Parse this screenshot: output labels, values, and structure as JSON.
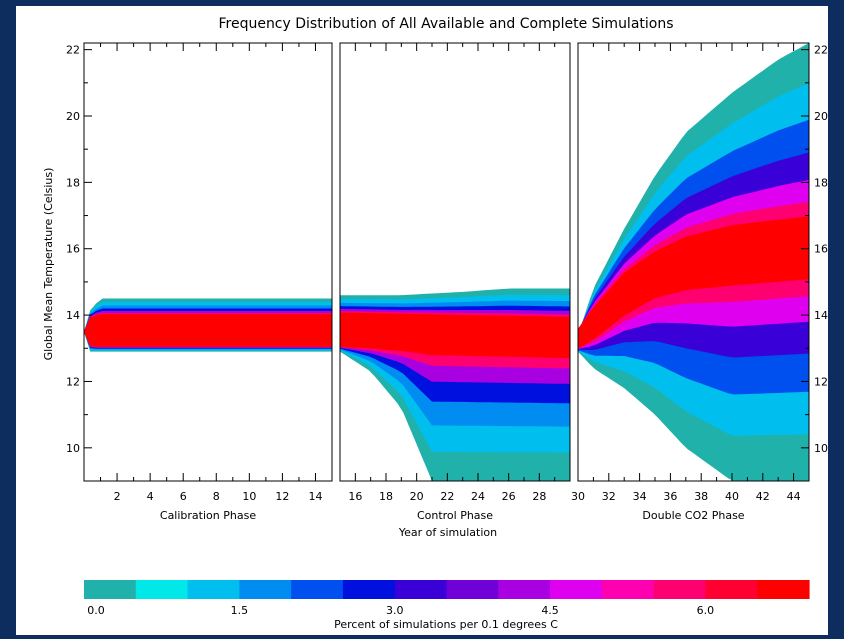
{
  "chart_data": {
    "type": "heatmap",
    "title": "Frequency Distribution of All Available and Complete Simulations",
    "ylabel": "Global Mean Temperature (Celsius)",
    "xlabel": "Year of simulation",
    "ylim": [
      9,
      22.2
    ],
    "y_ticks": [
      "22",
      "20",
      "18",
      "16",
      "14",
      "12",
      "10"
    ],
    "panels": [
      {
        "label": "Calibration Phase",
        "xlim": [
          0,
          15
        ],
        "x_ticks": [
          "2",
          "4",
          "6",
          "8",
          "10",
          "12",
          "14"
        ],
        "envelope": [
          [
            0,
            13.5,
            13.5
          ],
          [
            0.3,
            12.9,
            14.1
          ],
          [
            1,
            12.9,
            14.5
          ],
          [
            15,
            12.9,
            14.5
          ]
        ],
        "band": [
          [
            0,
            13.5,
            13.5
          ],
          [
            0.4,
            13.05,
            13.95
          ],
          [
            1,
            13.05,
            14.0
          ],
          [
            15,
            13.05,
            14.0
          ]
        ]
      },
      {
        "label": "Control Phase",
        "xlim": [
          15,
          30
        ],
        "x_ticks": [
          "16",
          "18",
          "20",
          "22",
          "24",
          "26",
          "28"
        ],
        "envelope": [
          [
            15,
            12.9,
            14.6
          ],
          [
            17,
            12.3,
            14.6
          ],
          [
            19,
            11.2,
            14.6
          ],
          [
            21,
            9.0,
            14.65
          ],
          [
            23,
            9.0,
            14.7
          ],
          [
            26,
            9.0,
            14.8
          ],
          [
            30,
            9.0,
            14.8
          ]
        ],
        "band": [
          [
            15,
            13.05,
            14.05
          ],
          [
            20,
            13.0,
            14.0
          ],
          [
            25,
            12.95,
            13.95
          ],
          [
            30,
            12.9,
            13.9
          ]
        ]
      },
      {
        "label": "Double CO2 Phase",
        "xlim": [
          30,
          45
        ],
        "x_ticks": [
          "30",
          "32",
          "34",
          "36",
          "38",
          "40",
          "42",
          "44"
        ],
        "envelope": [
          [
            30,
            12.9,
            13.4
          ],
          [
            31,
            12.4,
            14.8
          ],
          [
            33,
            11.8,
            16.6
          ],
          [
            35,
            11.0,
            18.2
          ],
          [
            37,
            10.0,
            19.5
          ],
          [
            40,
            9.0,
            20.7
          ],
          [
            43,
            9.0,
            21.7
          ],
          [
            45,
            9.0,
            22.2
          ]
        ],
        "band": [
          [
            30,
            13.0,
            13.6
          ],
          [
            31,
            13.3,
            14.2
          ],
          [
            33,
            14.1,
            15.2
          ],
          [
            35,
            14.7,
            15.8
          ],
          [
            37,
            15.0,
            16.2
          ],
          [
            40,
            15.2,
            16.5
          ],
          [
            45,
            15.4,
            16.7
          ]
        ]
      }
    ],
    "colorbar": {
      "label": "Percent of simulations per 0.1 degrees C",
      "range": [
        0,
        7
      ],
      "tick_labels": [
        "0.0",
        "1.5",
        "3.0",
        "4.5",
        "6.0"
      ],
      "colors": [
        "#20b2aa",
        "#00e8e8",
        "#00bfef",
        "#008cf0",
        "#0050ef",
        "#0010df",
        "#3a00d8",
        "#7000d8",
        "#a800e0",
        "#e000f0",
        "#ff00b0",
        "#ff0070",
        "#ff0030",
        "#ff0000"
      ]
    }
  }
}
